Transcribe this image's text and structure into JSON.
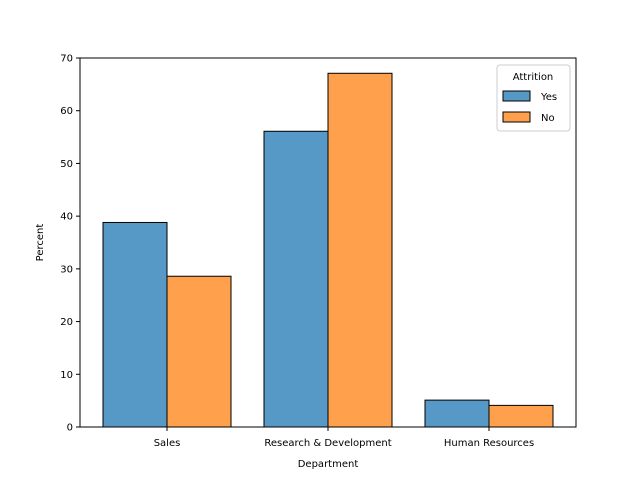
{
  "chart_data": {
    "type": "bar",
    "title": "",
    "xlabel": "Department",
    "ylabel": "Percent",
    "categories": [
      "Sales",
      "Research & Development",
      "Human Resources"
    ],
    "series": [
      {
        "name": "Yes",
        "values": [
          38.8,
          56.1,
          5.1
        ],
        "color": "#5799c6"
      },
      {
        "name": "No",
        "values": [
          28.6,
          67.1,
          4.1
        ],
        "color": "#ffa04d"
      }
    ],
    "ylim": [
      0,
      70
    ],
    "yticks": [
      "0",
      "10",
      "20",
      "30",
      "40",
      "50",
      "60",
      "70"
    ],
    "grid": false,
    "legend": {
      "title": "Attrition",
      "placement": "top-right"
    }
  }
}
